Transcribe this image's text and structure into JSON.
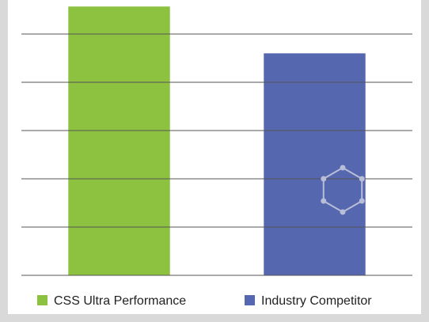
{
  "chart_data": {
    "type": "bar",
    "series": [
      {
        "name": "CSS Ultra Performance",
        "color": "#8dc240",
        "values": [
          5.57
        ]
      },
      {
        "name": "Industry Competitor",
        "color": "#5567ae",
        "values": [
          4.6
        ]
      }
    ],
    "ylim": [
      0,
      6
    ],
    "yticks": [
      0,
      1,
      2,
      3,
      4,
      5
    ],
    "grid": true
  }
}
